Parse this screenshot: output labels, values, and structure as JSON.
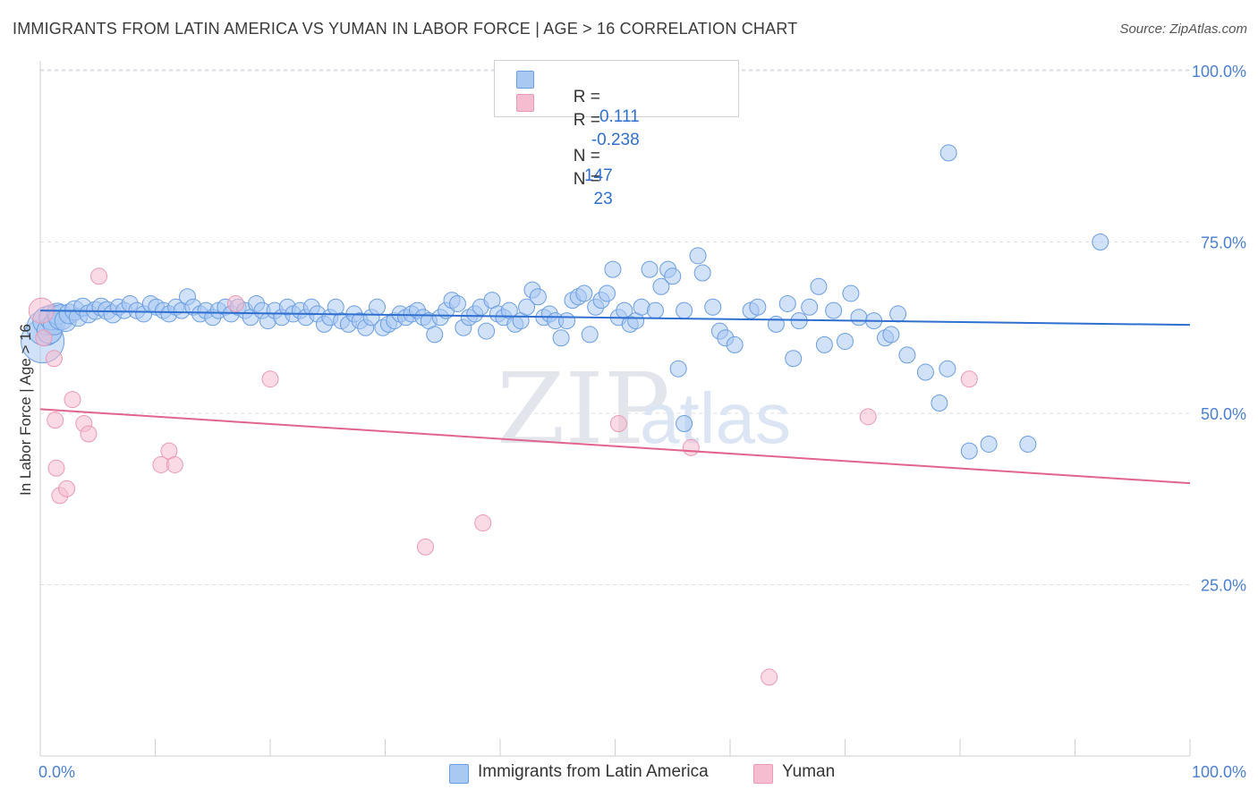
{
  "header": {
    "title": "IMMIGRANTS FROM LATIN AMERICA VS YUMAN IN LABOR FORCE | AGE > 16 CORRELATION CHART",
    "source": "Source: ZipAtlas.com"
  },
  "watermark": {
    "zip": "ZIP",
    "atlas": "atlas"
  },
  "legend": {
    "rows": [
      {
        "r_label": "R =",
        "r_value": "-0.111",
        "n_label": "N =",
        "n_value": "147",
        "color": "#a9c8f2"
      },
      {
        "r_label": "R =",
        "r_value": "-0.238",
        "n_label": "N =",
        "n_value": "23",
        "color": "#f6bcd0"
      }
    ]
  },
  "chart_data": {
    "type": "scatter",
    "title": "IMMIGRANTS FROM LATIN AMERICA VS YUMAN IN LABOR FORCE | AGE > 16 CORRELATION CHART",
    "xlabel": "",
    "ylabel": "In Labor Force | Age > 16",
    "xlim": [
      0,
      100
    ],
    "ylim": [
      0,
      105
    ],
    "x_tick_labels": [
      "0.0%",
      "100.0%"
    ],
    "y_ticks": [
      25,
      50,
      75,
      100
    ],
    "y_tick_labels": [
      "25.0%",
      "50.0%",
      "75.0%",
      "100.0%"
    ],
    "grid": true,
    "legend_position": "top-center",
    "series": [
      {
        "name": "Immigrants from Latin America",
        "color": "#a9c8f2",
        "stroke": "#6a9ee0",
        "trend": {
          "x": [
            0,
            100
          ],
          "y": [
            65.0,
            62.9
          ],
          "color": "#2e6fd0"
        },
        "points": [
          [
            0.2,
            60.5,
            24
          ],
          [
            0.4,
            62.5,
            20
          ],
          [
            0.6,
            63.5,
            16
          ],
          [
            0.8,
            62,
            14
          ],
          [
            1,
            64,
            14
          ],
          [
            1.2,
            63,
            12
          ],
          [
            1.5,
            64.5,
            12
          ],
          [
            1.8,
            64,
            14
          ],
          [
            2.2,
            63.5,
            12
          ],
          [
            2.5,
            64.5,
            11
          ],
          [
            3,
            65,
            11
          ],
          [
            3.3,
            64,
            10
          ],
          [
            3.7,
            65.5,
            10
          ],
          [
            4.2,
            64.5,
            10
          ],
          [
            4.8,
            65,
            10
          ],
          [
            5.3,
            65.5,
            10
          ],
          [
            5.8,
            65,
            10
          ],
          [
            6.3,
            64.5,
            10
          ],
          [
            6.8,
            65.5,
            9
          ],
          [
            7.3,
            65,
            9
          ],
          [
            7.8,
            66,
            9
          ],
          [
            8.4,
            65,
            9
          ],
          [
            9,
            64.5,
            9
          ],
          [
            9.6,
            66,
            9
          ],
          [
            10.1,
            65.5,
            9
          ],
          [
            10.7,
            65,
            9
          ],
          [
            11.2,
            64.5,
            9
          ],
          [
            11.8,
            65.5,
            9
          ],
          [
            12.3,
            65,
            9
          ],
          [
            12.8,
            67,
            9
          ],
          [
            13.3,
            65.5,
            9
          ],
          [
            13.9,
            64.5,
            9
          ],
          [
            14.4,
            65,
            9
          ],
          [
            15,
            64,
            9
          ],
          [
            15.5,
            65,
            9
          ],
          [
            16.1,
            65.5,
            9
          ],
          [
            16.6,
            64.5,
            9
          ],
          [
            17.2,
            65.5,
            9
          ],
          [
            17.8,
            65,
            9
          ],
          [
            18.3,
            64,
            9
          ],
          [
            18.8,
            66,
            9
          ],
          [
            19.3,
            65,
            9
          ],
          [
            19.8,
            63.5,
            9
          ],
          [
            20.4,
            65,
            9
          ],
          [
            21,
            64,
            9
          ],
          [
            21.5,
            65.5,
            9
          ],
          [
            22,
            64.5,
            9
          ],
          [
            22.6,
            65,
            9
          ],
          [
            23.1,
            64,
            9
          ],
          [
            23.6,
            65.5,
            9
          ],
          [
            24.1,
            64.5,
            9
          ],
          [
            24.7,
            63,
            9
          ],
          [
            25.2,
            64,
            9
          ],
          [
            25.7,
            65.5,
            9
          ],
          [
            26.2,
            63.5,
            9
          ],
          [
            26.8,
            63,
            9
          ],
          [
            27.3,
            64.5,
            9
          ],
          [
            27.8,
            63.5,
            9
          ],
          [
            28.3,
            62.5,
            9
          ],
          [
            28.8,
            64,
            9
          ],
          [
            29.3,
            65.5,
            9
          ],
          [
            29.8,
            62.5,
            9
          ],
          [
            30.3,
            63,
            9
          ],
          [
            30.8,
            63.5,
            9
          ],
          [
            31.3,
            64.5,
            9
          ],
          [
            31.8,
            64,
            9
          ],
          [
            32.3,
            64.5,
            9
          ],
          [
            32.8,
            65,
            9
          ],
          [
            33.3,
            64,
            9
          ],
          [
            33.8,
            63.5,
            9
          ],
          [
            34.3,
            61.5,
            9
          ],
          [
            34.8,
            64,
            9
          ],
          [
            35.3,
            65,
            9
          ],
          [
            35.8,
            66.5,
            9
          ],
          [
            36.3,
            66,
            9
          ],
          [
            36.8,
            62.5,
            9
          ],
          [
            37.3,
            64,
            9
          ],
          [
            37.8,
            64.5,
            9
          ],
          [
            38.3,
            65.5,
            9
          ],
          [
            38.8,
            62,
            9
          ],
          [
            39.3,
            66.5,
            9
          ],
          [
            39.8,
            64.5,
            9
          ],
          [
            40.3,
            64,
            9
          ],
          [
            40.8,
            65,
            9
          ],
          [
            41.3,
            63,
            9
          ],
          [
            41.8,
            63.5,
            9
          ],
          [
            42.3,
            65.5,
            9
          ],
          [
            42.8,
            68,
            9
          ],
          [
            43.3,
            67,
            9
          ],
          [
            43.8,
            64,
            9
          ],
          [
            44.3,
            64.5,
            9
          ],
          [
            44.8,
            63.5,
            9
          ],
          [
            45.3,
            61,
            9
          ],
          [
            45.8,
            63.5,
            9
          ],
          [
            46.3,
            66.5,
            9
          ],
          [
            46.8,
            67,
            9
          ],
          [
            47.3,
            67.5,
            9
          ],
          [
            47.8,
            61.5,
            9
          ],
          [
            48.3,
            65.5,
            9
          ],
          [
            48.8,
            66.5,
            9
          ],
          [
            49.3,
            67.5,
            9
          ],
          [
            49.8,
            71,
            9
          ],
          [
            50.3,
            64,
            9
          ],
          [
            50.8,
            65,
            9
          ],
          [
            51.3,
            63,
            9
          ],
          [
            51.8,
            63.5,
            9
          ],
          [
            52.3,
            65.5,
            9
          ],
          [
            53,
            71,
            9
          ],
          [
            53.5,
            65,
            9
          ],
          [
            54,
            68.5,
            9
          ],
          [
            54.6,
            71,
            9
          ],
          [
            55,
            70,
            9
          ],
          [
            56,
            65,
            9
          ],
          [
            57.2,
            73,
            9
          ],
          [
            57.6,
            70.5,
            9
          ],
          [
            58.5,
            65.5,
            9
          ],
          [
            59.1,
            62,
            9
          ],
          [
            59.6,
            61,
            9
          ],
          [
            60.4,
            60,
            9
          ],
          [
            61.8,
            65,
            9
          ],
          [
            62.4,
            65.5,
            9
          ],
          [
            64,
            63,
            9
          ],
          [
            65,
            66,
            9
          ],
          [
            65.5,
            58,
            9
          ],
          [
            66,
            63.5,
            9
          ],
          [
            66.9,
            65.5,
            9
          ],
          [
            67.7,
            68.5,
            9
          ],
          [
            68.2,
            60,
            9
          ],
          [
            69,
            65,
            9
          ],
          [
            70,
            60.5,
            9
          ],
          [
            70.5,
            67.5,
            9
          ],
          [
            71.2,
            64,
            9
          ],
          [
            72.5,
            63.5,
            9
          ],
          [
            73.5,
            61,
            9
          ],
          [
            74,
            61.5,
            9
          ],
          [
            74.6,
            64.5,
            9
          ],
          [
            75.4,
            58.5,
            9
          ],
          [
            77,
            56,
            9
          ],
          [
            78.2,
            51.5,
            9
          ],
          [
            78.9,
            56.5,
            9
          ],
          [
            79,
            88,
            9
          ],
          [
            80.8,
            44.5,
            9
          ],
          [
            82.5,
            45.5,
            9
          ],
          [
            85.9,
            45.5,
            9
          ],
          [
            92.2,
            75,
            9
          ],
          [
            55.5,
            56.5,
            9
          ],
          [
            56,
            48.5,
            9
          ]
        ]
      },
      {
        "name": "Yuman",
        "color": "#f6bcd0",
        "stroke": "#e99ab5",
        "trend": {
          "x": [
            0,
            100
          ],
          "y": [
            50.6,
            39.8
          ],
          "color": "#e0648f"
        },
        "points": [
          [
            0.1,
            65,
            14
          ],
          [
            0.3,
            61,
            9
          ],
          [
            1.2,
            58,
            9
          ],
          [
            1.3,
            49,
            9
          ],
          [
            1.4,
            42,
            9
          ],
          [
            1.7,
            38,
            9
          ],
          [
            2.3,
            39,
            9
          ],
          [
            2.8,
            52,
            9
          ],
          [
            3.8,
            48.5,
            9
          ],
          [
            4.2,
            47,
            9
          ],
          [
            5.1,
            70,
            9
          ],
          [
            10.5,
            42.5,
            9
          ],
          [
            11.2,
            44.5,
            9
          ],
          [
            11.7,
            42.5,
            9
          ],
          [
            17,
            66,
            9
          ],
          [
            20,
            55,
            9
          ],
          [
            33.5,
            30.5,
            9
          ],
          [
            38.5,
            34,
            9
          ],
          [
            50.3,
            48.5,
            9
          ],
          [
            56.6,
            45,
            9
          ],
          [
            63.4,
            11.5,
            9
          ],
          [
            72,
            49.5,
            9
          ],
          [
            80.8,
            55,
            9
          ]
        ]
      }
    ]
  }
}
